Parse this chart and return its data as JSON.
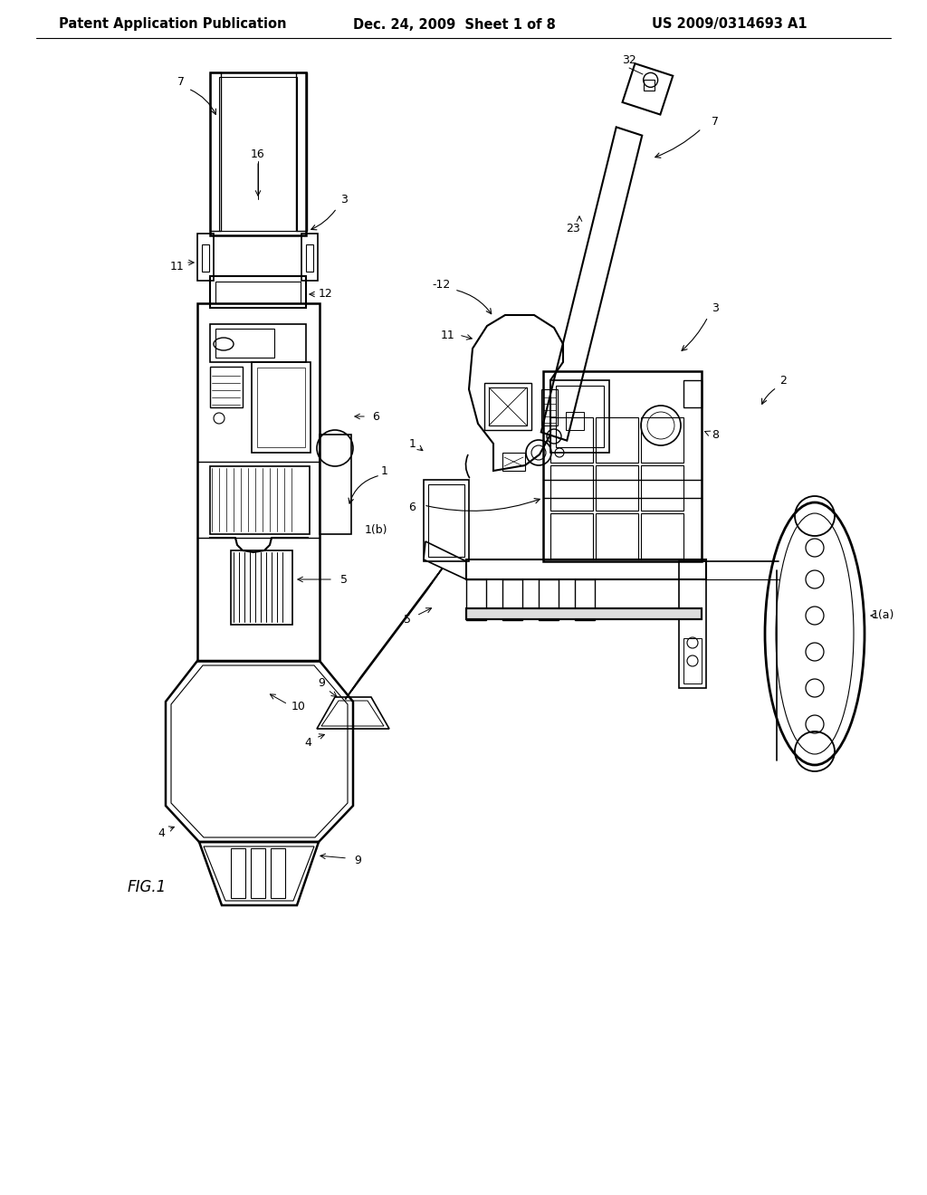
{
  "background_color": "#ffffff",
  "header_left": "Patent Application Publication",
  "header_mid": "Dec. 24, 2009  Sheet 1 of 8",
  "header_right": "US 2009/0314693 A1",
  "figure_label": "FIG.1",
  "text_color": "#000000",
  "line_color": "#000000",
  "header_fontsize": 10.5,
  "figure_label_fontsize": 12,
  "label_fontsize": 9
}
